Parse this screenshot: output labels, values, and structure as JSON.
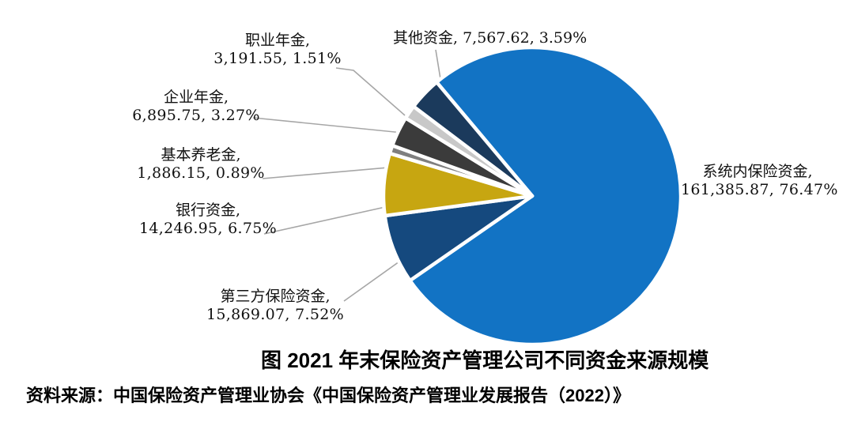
{
  "chart_data": {
    "type": "pie",
    "title": "图 2021 年末保险资产管理公司不同资金来源规模",
    "source": "资料来源：中国保险资产管理业协会《中国保险资产管理业发展报告（2022）》",
    "legend_position": "none",
    "grid": false,
    "slices": [
      {
        "name": "系统内保险资金",
        "value": 161385.87,
        "pct": 76.47,
        "color": "#1273C4",
        "label_line1": "系统内保险资金,",
        "label_line2": "161,385.87, 76.47%"
      },
      {
        "name": "第三方保险资金",
        "value": 15869.07,
        "pct": 7.52,
        "color": "#15497E",
        "label_line1": "第三方保险资金,",
        "label_line2": "15,869.07, 7.52%"
      },
      {
        "name": "银行资金",
        "value": 14246.95,
        "pct": 6.75,
        "color": "#C7A611",
        "label_line1": "银行资金,",
        "label_line2": "14,246.95, 6.75%"
      },
      {
        "name": "基本养老金",
        "value": 1886.15,
        "pct": 0.89,
        "color": "#7F7F7F",
        "label_line1": "基本养老金,",
        "label_line2": "1,886.15, 0.89%"
      },
      {
        "name": "企业年金",
        "value": 6895.75,
        "pct": 3.27,
        "color": "#3B3B3B",
        "label_line1": "企业年金,",
        "label_line2": "6,895.75, 3.27%"
      },
      {
        "name": "职业年金",
        "value": 3191.55,
        "pct": 1.51,
        "color": "#C8C8C8",
        "label_line1": "职业年金,",
        "label_line2": "3,191.55, 1.51%"
      },
      {
        "name": "其他资金",
        "value": 7567.62,
        "pct": 3.59,
        "color": "#1B3A5C",
        "label_line1": "其他资金, 7,567.62, 3.59%"
      }
    ]
  },
  "colors": {
    "background": "#FFFFFF",
    "leader_line": "#A6A6A6",
    "slice_border": "#FFFFFF",
    "label_text": "#111111"
  }
}
